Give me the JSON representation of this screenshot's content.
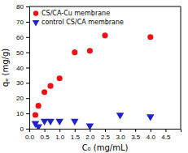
{
  "chart_data": {
    "type": "scatter",
    "xlabel": "C₀ (mg/mL)",
    "ylabel": "qₑ (mg/g)",
    "series": [
      {
        "name": "CS/CA-Cu membrane",
        "color": "#ee1111",
        "marker": "circle",
        "x": [
          0.2,
          0.3,
          0.5,
          0.7,
          1.0,
          1.5,
          2.0,
          2.5,
          4.0
        ],
        "values": [
          9,
          15,
          24,
          28,
          33,
          50,
          51,
          61,
          60
        ]
      },
      {
        "name": "control CS/CA membrane",
        "color": "#2222cc",
        "marker": "triangle-down",
        "x": [
          0.2,
          0.3,
          0.5,
          0.7,
          1.0,
          1.5,
          2.0,
          3.0,
          4.0
        ],
        "values": [
          3.5,
          1.5,
          5,
          5,
          5,
          5,
          2,
          9,
          8
        ]
      }
    ],
    "xlim": [
      0,
      5.0
    ],
    "ylim": [
      0,
      80
    ],
    "xticks": [
      {
        "value": 0.0,
        "label": "0.0"
      },
      0.5,
      {
        "value": 1.0,
        "label": "1.0"
      },
      1.5,
      {
        "value": 2.0,
        "label": "2.0"
      },
      2.5,
      {
        "value": 3.0,
        "label": "3.0"
      },
      3.5,
      {
        "value": 4.0,
        "label": "4.0"
      },
      4.5
    ],
    "yticks": [
      0,
      10,
      20,
      30,
      40,
      50,
      60,
      70,
      80
    ],
    "grid": false,
    "legend": "upper left"
  }
}
